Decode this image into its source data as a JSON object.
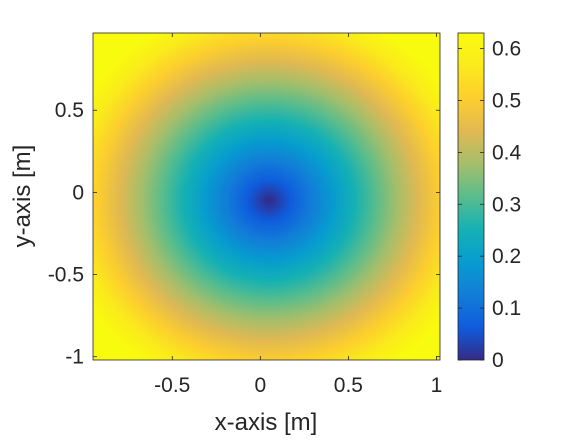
{
  "chart_data": {
    "type": "heatmap",
    "title": "",
    "xlabel": "x-axis [m]",
    "ylabel": "y-axis [m]",
    "xlim": [
      -0.95,
      1.02
    ],
    "ylim": [
      -1.02,
      0.97
    ],
    "x_ticks": [
      -0.5,
      0,
      0.5,
      1
    ],
    "x_tick_labels": [
      "-0.5",
      "0",
      "0.5",
      "1"
    ],
    "y_ticks": [
      -1,
      -0.5,
      0,
      0.5
    ],
    "y_tick_labels": [
      "-1",
      "-0.5",
      "0",
      "0.5"
    ],
    "field": {
      "description_of_values": "radial distance from origin",
      "center": [
        0.05,
        -0.05
      ],
      "formula": "sqrt((x-cx)^2+(y-cy)^2)/2.6"
    },
    "colorbar": {
      "range": [
        0,
        0.63
      ],
      "ticks": [
        0,
        0.1,
        0.2,
        0.3,
        0.4,
        0.5,
        0.6
      ],
      "tick_labels": [
        "0",
        "0.1",
        "0.2",
        "0.3",
        "0.4",
        "0.5",
        "0.6"
      ]
    },
    "colormap": "parula",
    "colors": {
      "axis": "#262626",
      "frame": "#262626"
    }
  }
}
